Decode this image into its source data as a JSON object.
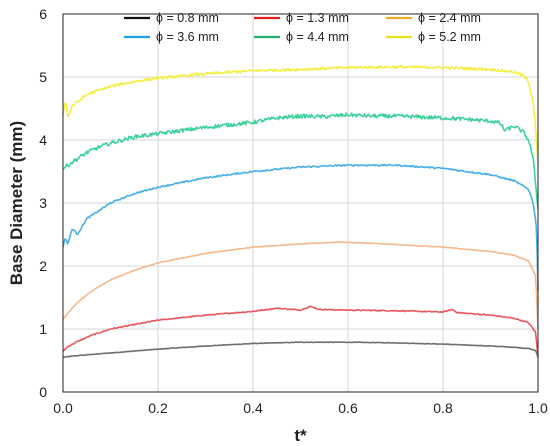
{
  "chart_data": {
    "type": "line",
    "xlabel": "t*",
    "ylabel": "Base Diameter (mm)",
    "xlim": [
      0,
      1
    ],
    "ylim": [
      0,
      6
    ],
    "x_ticks": [
      "0.0",
      "0.2",
      "0.4",
      "0.6",
      "0.8",
      "1.0"
    ],
    "y_ticks": [
      "0",
      "1",
      "2",
      "3",
      "4",
      "5",
      "6"
    ],
    "grid": true,
    "legend_position": "top",
    "series": [
      {
        "name": "ϕ = 0.8 mm",
        "color": "#6f6f6f",
        "legend_color": "#111111",
        "noise": 0.004,
        "x": [
          0,
          0.02,
          0.05,
          0.1,
          0.2,
          0.3,
          0.4,
          0.5,
          0.6,
          0.7,
          0.8,
          0.9,
          0.95,
          0.98,
          0.995,
          1.0
        ],
        "y": [
          0.55,
          0.57,
          0.59,
          0.62,
          0.68,
          0.73,
          0.77,
          0.79,
          0.79,
          0.78,
          0.76,
          0.73,
          0.71,
          0.69,
          0.66,
          0.55
        ]
      },
      {
        "name": "ϕ = 1.3 mm",
        "color": "#e8595f",
        "legend_color": "#e02020",
        "noise": 0.008,
        "x": [
          0,
          0.01,
          0.03,
          0.06,
          0.1,
          0.2,
          0.3,
          0.4,
          0.45,
          0.5,
          0.52,
          0.54,
          0.6,
          0.7,
          0.8,
          0.82,
          0.83,
          0.9,
          0.95,
          0.98,
          0.995,
          1.0
        ],
        "y": [
          0.65,
          0.72,
          0.8,
          0.9,
          1.0,
          1.14,
          1.22,
          1.28,
          1.33,
          1.3,
          1.36,
          1.31,
          1.3,
          1.29,
          1.27,
          1.31,
          1.26,
          1.22,
          1.17,
          1.1,
          0.95,
          0.55
        ]
      },
      {
        "name": "ϕ = 2.4 mm",
        "color": "#f5b88a",
        "legend_color": "#e8b020",
        "noise": 0.004,
        "x": [
          0,
          0.01,
          0.03,
          0.06,
          0.1,
          0.15,
          0.2,
          0.3,
          0.4,
          0.5,
          0.58,
          0.65,
          0.7,
          0.8,
          0.9,
          0.95,
          0.98,
          0.995,
          1.0
        ],
        "y": [
          1.15,
          1.25,
          1.42,
          1.6,
          1.78,
          1.93,
          2.05,
          2.2,
          2.3,
          2.35,
          2.38,
          2.36,
          2.34,
          2.3,
          2.23,
          2.17,
          2.08,
          1.85,
          1.0
        ]
      },
      {
        "name": "ϕ = 3.6 mm",
        "color": "#4ab0e6",
        "legend_color": "#20a0e0",
        "noise": 0.012,
        "x": [
          0,
          0.005,
          0.01,
          0.02,
          0.03,
          0.05,
          0.08,
          0.1,
          0.15,
          0.2,
          0.3,
          0.4,
          0.5,
          0.6,
          0.7,
          0.8,
          0.9,
          0.95,
          0.98,
          0.99,
          0.997,
          1.0
        ],
        "y": [
          2.3,
          2.45,
          2.35,
          2.6,
          2.5,
          2.75,
          2.9,
          3.0,
          3.15,
          3.25,
          3.4,
          3.5,
          3.57,
          3.6,
          3.6,
          3.55,
          3.45,
          3.35,
          3.22,
          3.0,
          2.6,
          1.6
        ]
      },
      {
        "name": "ϕ = 4.4 mm",
        "color": "#3ed19a",
        "legend_color": "#20b070",
        "noise": 0.03,
        "x": [
          0,
          0.01,
          0.03,
          0.05,
          0.08,
          0.1,
          0.15,
          0.2,
          0.3,
          0.4,
          0.45,
          0.5,
          0.55,
          0.6,
          0.65,
          0.7,
          0.8,
          0.85,
          0.9,
          0.92,
          0.93,
          0.95,
          0.97,
          0.98,
          0.99,
          1.0
        ],
        "y": [
          3.55,
          3.6,
          3.7,
          3.8,
          3.9,
          3.95,
          4.05,
          4.1,
          4.2,
          4.28,
          4.35,
          4.38,
          4.37,
          4.4,
          4.38,
          4.38,
          4.35,
          4.33,
          4.3,
          4.27,
          4.15,
          4.22,
          4.12,
          4.0,
          3.7,
          2.9
        ]
      },
      {
        "name": "ϕ = 5.2 mm",
        "color": "#f4ee45",
        "legend_color": "#e8e020",
        "noise": 0.02,
        "x": [
          0,
          0.005,
          0.01,
          0.02,
          0.03,
          0.05,
          0.08,
          0.1,
          0.15,
          0.2,
          0.3,
          0.4,
          0.5,
          0.6,
          0.7,
          0.8,
          0.9,
          0.95,
          0.97,
          0.98,
          0.99,
          0.995,
          1.0
        ],
        "y": [
          4.4,
          4.65,
          4.35,
          4.55,
          4.6,
          4.72,
          4.8,
          4.85,
          4.93,
          4.98,
          5.05,
          5.1,
          5.12,
          5.15,
          5.16,
          5.15,
          5.12,
          5.08,
          5.02,
          4.92,
          4.6,
          4.2,
          3.6
        ]
      }
    ]
  }
}
